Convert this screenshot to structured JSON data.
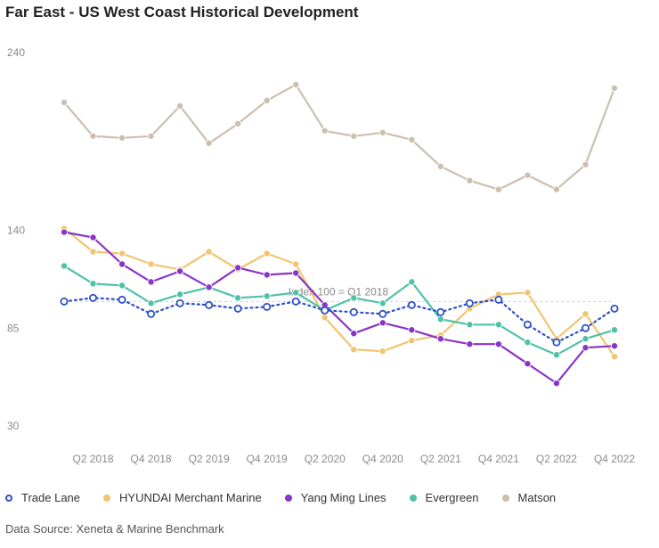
{
  "title": "Far East - US West Coast Historical Development",
  "source": "Data Source: Xeneta & Marine Benchmark",
  "chart_data": {
    "type": "line",
    "title": "Far East - US West Coast Historical Development",
    "ylim": [
      30,
      240
    ],
    "yticks": [
      30,
      85,
      140,
      240
    ],
    "x_count": 20,
    "xtick_labels": [
      {
        "index": 1,
        "label": "Q2 2018"
      },
      {
        "index": 3,
        "label": "Q4 2018"
      },
      {
        "index": 5,
        "label": "Q2 2019"
      },
      {
        "index": 7,
        "label": "Q4 2019"
      },
      {
        "index": 9,
        "label": "Q2 2020"
      },
      {
        "index": 11,
        "label": "Q4 2020"
      },
      {
        "index": 13,
        "label": "Q2 2021"
      },
      {
        "index": 15,
        "label": "Q4 2021"
      },
      {
        "index": 17,
        "label": "Q2 2022"
      },
      {
        "index": 19,
        "label": "Q4 2022"
      }
    ],
    "reference_line": {
      "value": 100,
      "label": "Index 100 = Q1 2018"
    },
    "series": [
      {
        "name": "Matson",
        "color": "#cbbfae",
        "style": "solid",
        "values": [
          212,
          193,
          192,
          193,
          210,
          189,
          200,
          213,
          222,
          196,
          193,
          195,
          191,
          176,
          168,
          163,
          171,
          163,
          177,
          220
        ]
      },
      {
        "name": "HYUNDAI Merchant Marine",
        "color": "#f2c46d",
        "style": "solid",
        "values": [
          141,
          128,
          127,
          121,
          118,
          128,
          118,
          127,
          121,
          91,
          73,
          72,
          78,
          81,
          96,
          104,
          105,
          79,
          93,
          69
        ]
      },
      {
        "name": "Evergreen",
        "color": "#4fc1a9",
        "style": "solid",
        "values": [
          120,
          110,
          109,
          99,
          104,
          108,
          102,
          103,
          105,
          95,
          102,
          99,
          111,
          90,
          87,
          87,
          77,
          70,
          79,
          84
        ]
      },
      {
        "name": "Yang Ming Lines",
        "color": "#8a35c8",
        "style": "solid",
        "values": [
          139,
          136,
          121,
          111,
          117,
          108,
          119,
          115,
          116,
          98,
          82,
          88,
          84,
          79,
          76,
          76,
          65,
          54,
          74,
          75
        ]
      },
      {
        "name": "Trade Lane",
        "color": "#2d50c7",
        "style": "dotted",
        "hollow": true,
        "values": [
          100,
          102,
          101,
          93,
          99,
          98,
          96,
          97,
          100,
          95,
          94,
          93,
          98,
          94,
          99,
          101,
          87,
          77,
          85,
          96
        ]
      }
    ],
    "legend": [
      {
        "name": "Trade Lane",
        "color": "#2d50c7",
        "hollow": true
      },
      {
        "name": "HYUNDAI Merchant Marine",
        "color": "#f2c46d",
        "hollow": false
      },
      {
        "name": "Yang Ming Lines",
        "color": "#8a35c8",
        "hollow": false
      },
      {
        "name": "Evergreen",
        "color": "#4fc1a9",
        "hollow": false
      },
      {
        "name": "Matson",
        "color": "#cbbfae",
        "hollow": false
      }
    ]
  }
}
